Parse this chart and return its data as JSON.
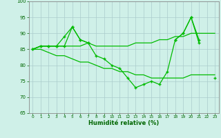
{
  "xlabel": "Humidité relative (%)",
  "background_color": "#cff0e8",
  "grid_color": "#aacccc",
  "line_color": "#00bb00",
  "xlim": [
    -0.5,
    23.5
  ],
  "ylim": [
    65,
    100
  ],
  "yticks": [
    65,
    70,
    75,
    80,
    85,
    90,
    95,
    100
  ],
  "xticks": [
    0,
    1,
    2,
    3,
    4,
    5,
    6,
    7,
    8,
    9,
    10,
    11,
    12,
    13,
    14,
    15,
    16,
    17,
    18,
    19,
    20,
    21,
    22,
    23
  ],
  "series": [
    {
      "x": [
        0,
        1,
        2,
        3,
        4,
        5,
        6,
        7,
        8,
        9,
        10,
        11,
        12,
        13,
        14,
        15,
        16,
        17,
        18,
        19,
        20,
        21,
        22,
        23
      ],
      "y": [
        85,
        86,
        86,
        86,
        86,
        92,
        88,
        87,
        83,
        82,
        80,
        79,
        76,
        73,
        74,
        75,
        74,
        78,
        88,
        90,
        95,
        88,
        null,
        76
      ],
      "marker": "+",
      "markersize": 3.5,
      "linewidth": 0.9,
      "markeredgewidth": 1.0
    },
    {
      "x": [
        0,
        1,
        2,
        3,
        4,
        5,
        6,
        7,
        8,
        9,
        10,
        11,
        12,
        13,
        14,
        15,
        16,
        17,
        18,
        19,
        20,
        21,
        22,
        23
      ],
      "y": [
        85,
        86,
        86,
        86,
        89,
        92,
        88,
        87,
        null,
        null,
        null,
        null,
        null,
        null,
        null,
        null,
        null,
        null,
        88,
        90,
        95,
        87,
        null,
        null
      ],
      "marker": "+",
      "markersize": 3.5,
      "linewidth": 0.9,
      "markeredgewidth": 1.0
    },
    {
      "x": [
        0,
        1,
        2,
        3,
        4,
        5,
        6,
        7,
        8,
        9,
        10,
        11,
        12,
        13,
        14,
        15,
        16,
        17,
        18,
        19,
        20,
        21,
        22,
        23
      ],
      "y": [
        85,
        86,
        86,
        86,
        86,
        86,
        86,
        87,
        86,
        86,
        86,
        86,
        86,
        87,
        87,
        87,
        88,
        88,
        89,
        89,
        90,
        90,
        90,
        90
      ],
      "marker": null,
      "markersize": 0,
      "linewidth": 0.9,
      "markeredgewidth": 0
    },
    {
      "x": [
        0,
        1,
        2,
        3,
        4,
        5,
        6,
        7,
        8,
        9,
        10,
        11,
        12,
        13,
        14,
        15,
        16,
        17,
        18,
        19,
        20,
        21,
        22,
        23
      ],
      "y": [
        85,
        85,
        84,
        83,
        83,
        82,
        81,
        81,
        80,
        79,
        79,
        78,
        78,
        77,
        77,
        76,
        76,
        76,
        76,
        76,
        77,
        77,
        77,
        77
      ],
      "marker": null,
      "markersize": 0,
      "linewidth": 0.9,
      "markeredgewidth": 0
    }
  ]
}
